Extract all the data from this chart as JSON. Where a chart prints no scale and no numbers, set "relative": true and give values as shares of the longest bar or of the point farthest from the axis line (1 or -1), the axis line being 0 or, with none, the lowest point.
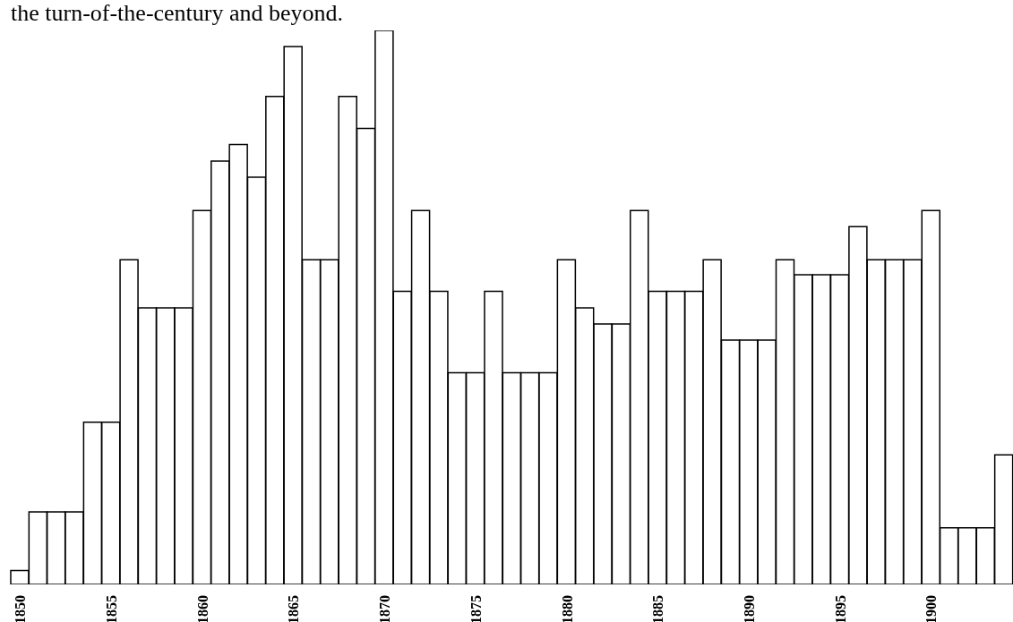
{
  "chart_data": {
    "type": "bar",
    "title": "the turn-of-the-century and beyond.",
    "relative": true,
    "color": "#ffffff",
    "categories": [
      "1850",
      null,
      null,
      null,
      null,
      "1855",
      null,
      null,
      null,
      null,
      "1860",
      null,
      null,
      null,
      null,
      "1865",
      null,
      null,
      null,
      null,
      "1870",
      null,
      null,
      null,
      null,
      "1875",
      null,
      null,
      null,
      null,
      "1880",
      null,
      null,
      null,
      null,
      "1885",
      null,
      null,
      null,
      null,
      "1890",
      null,
      null,
      null,
      null,
      "1895",
      null,
      null,
      null,
      null,
      "1900",
      null,
      null,
      null,
      null
    ],
    "values": [
      0.025,
      0.131,
      0.131,
      0.131,
      0.293,
      0.293,
      0.586,
      0.499,
      0.499,
      0.499,
      0.675,
      0.764,
      0.794,
      0.735,
      0.881,
      0.971,
      0.586,
      0.586,
      0.881,
      0.823,
      1,
      0.529,
      0.675,
      0.529,
      0.382,
      0.382,
      0.529,
      0.382,
      0.382,
      0.382,
      0.586,
      0.499,
      0.47,
      0.47,
      0.675,
      0.529,
      0.529,
      0.529,
      0.586,
      0.441,
      0.441,
      0.441,
      0.586,
      0.559,
      0.559,
      0.559,
      0.646,
      0.586,
      0.586,
      0.586,
      0.675,
      0.102,
      0.102,
      0.102,
      0.234
    ]
  }
}
